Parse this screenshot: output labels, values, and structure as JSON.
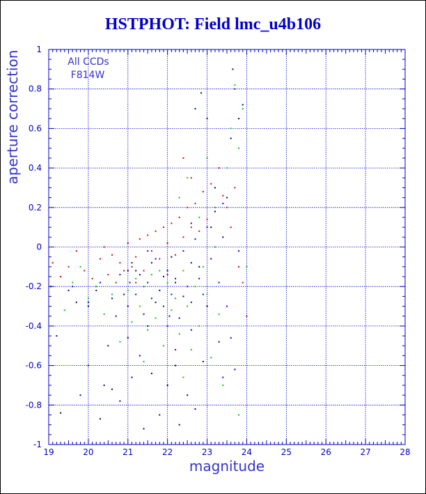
{
  "title": "HSTPHOT: Field lmc_u4b106",
  "colors": {
    "title": "#0000cc",
    "axis": "#0000cc",
    "grid": "#0000cc",
    "label": "#3333cc",
    "series": [
      "#000080",
      "#dd0000",
      "#00cc00",
      "#0000ff"
    ]
  },
  "chart_data": {
    "type": "scatter",
    "title": "HSTPHOT: Field lmc_u4b106",
    "xlabel": "magnitude",
    "ylabel": "aperture correction",
    "xlim": [
      19,
      28
    ],
    "ylim": [
      -1,
      1
    ],
    "xticks": [
      19,
      20,
      21,
      22,
      23,
      24,
      25,
      26,
      27,
      28
    ],
    "yticks": [
      -1,
      -0.8,
      -0.6,
      -0.4,
      -0.2,
      0,
      0.2,
      0.4,
      0.6,
      0.8,
      1
    ],
    "xtick_labels": [
      "19",
      "20",
      "21",
      "22",
      "23",
      "24",
      "25",
      "26",
      "27",
      "28"
    ],
    "ytick_labels": [
      "-1",
      "-0.8",
      "-0.6",
      "-0.4",
      "-0.2",
      "0",
      "0.2",
      "0.4",
      "0.6",
      "0.8",
      "1"
    ],
    "grid": true,
    "annotations": [
      "All CCDs",
      "F814W"
    ],
    "series": [
      {
        "color": "#000080",
        "points": [
          [
            19.05,
            -0.2
          ],
          [
            19.2,
            -0.45
          ],
          [
            19.3,
            -0.84
          ],
          [
            19.5,
            -0.22
          ],
          [
            19.7,
            -0.28
          ],
          [
            19.8,
            -0.75
          ],
          [
            20.0,
            -0.3
          ],
          [
            20.0,
            -0.6
          ],
          [
            20.2,
            -0.22
          ],
          [
            20.3,
            -0.87
          ],
          [
            20.4,
            -0.7
          ],
          [
            20.5,
            -0.5
          ],
          [
            20.6,
            -0.72
          ],
          [
            20.7,
            -0.35
          ],
          [
            20.8,
            -0.78
          ],
          [
            20.9,
            -0.24
          ],
          [
            21.0,
            -0.46
          ],
          [
            21.05,
            -0.18
          ],
          [
            21.1,
            -0.66
          ],
          [
            21.2,
            -0.12
          ],
          [
            21.3,
            -0.55
          ],
          [
            21.4,
            -0.92
          ],
          [
            21.5,
            -0.4
          ],
          [
            21.6,
            -0.64
          ],
          [
            21.7,
            -0.28
          ],
          [
            21.8,
            -0.85
          ],
          [
            21.9,
            -0.15
          ],
          [
            22.0,
            -0.7
          ],
          [
            22.05,
            -0.35
          ],
          [
            22.1,
            -0.05
          ],
          [
            22.2,
            -0.6
          ],
          [
            22.3,
            -0.9
          ],
          [
            22.4,
            -0.25
          ],
          [
            22.5,
            -0.75
          ],
          [
            22.6,
            -0.42
          ],
          [
            22.7,
            -0.82
          ],
          [
            22.8,
            -0.1
          ],
          [
            22.9,
            -0.58
          ],
          [
            23.0,
            -0.3
          ],
          [
            23.1,
            0.1
          ],
          [
            23.2,
            0.3
          ],
          [
            23.3,
            -0.48
          ],
          [
            23.4,
            0.05
          ],
          [
            23.5,
            0.25
          ],
          [
            23.6,
            0.55
          ],
          [
            23.65,
            0.9
          ],
          [
            23.7,
            0.8
          ],
          [
            23.8,
            0.65
          ],
          [
            23.9,
            0.72
          ],
          [
            22.85,
            0.78
          ],
          [
            22.7,
            0.7
          ],
          [
            23.0,
            0.65
          ],
          [
            21.6,
            -0.08
          ],
          [
            21.4,
            -0.2
          ],
          [
            22.2,
            -0.18
          ],
          [
            22.6,
            -0.08
          ]
        ]
      },
      {
        "color": "#dd0000",
        "points": [
          [
            19.1,
            -0.08
          ],
          [
            19.3,
            -0.15
          ],
          [
            19.5,
            -0.1
          ],
          [
            19.7,
            -0.02
          ],
          [
            19.9,
            -0.12
          ],
          [
            20.1,
            -0.16
          ],
          [
            20.3,
            -0.06
          ],
          [
            20.4,
            0.0
          ],
          [
            20.5,
            -0.14
          ],
          [
            20.6,
            -0.04
          ],
          [
            20.7,
            -0.18
          ],
          [
            20.8,
            -0.08
          ],
          [
            20.9,
            -0.12
          ],
          [
            21.0,
            0.02
          ],
          [
            21.1,
            -0.1
          ],
          [
            21.2,
            -0.05
          ],
          [
            21.3,
            0.04
          ],
          [
            21.4,
            -0.12
          ],
          [
            21.5,
            0.06
          ],
          [
            21.6,
            -0.02
          ],
          [
            21.7,
            0.08
          ],
          [
            21.8,
            -0.06
          ],
          [
            21.9,
            0.1
          ],
          [
            22.0,
            0.02
          ],
          [
            22.1,
            0.12
          ],
          [
            22.2,
            -0.04
          ],
          [
            22.3,
            0.15
          ],
          [
            22.4,
            0.05
          ],
          [
            22.5,
            0.2
          ],
          [
            22.6,
            0.1
          ],
          [
            22.7,
            0.22
          ],
          [
            22.8,
            0.08
          ],
          [
            22.9,
            0.28
          ],
          [
            23.0,
            0.14
          ],
          [
            23.1,
            0.32
          ],
          [
            23.2,
            0.18
          ],
          [
            23.3,
            0.4
          ],
          [
            23.4,
            0.26
          ],
          [
            23.5,
            0.2
          ],
          [
            23.6,
            0.1
          ],
          [
            23.7,
            0.3
          ],
          [
            23.8,
            -0.1
          ],
          [
            23.9,
            -0.18
          ],
          [
            24.0,
            -0.35
          ],
          [
            22.4,
            0.45
          ],
          [
            22.6,
            0.35
          ],
          [
            21.2,
            -0.18
          ],
          [
            22.0,
            -0.14
          ]
        ]
      },
      {
        "color": "#00cc00",
        "points": [
          [
            19.4,
            -0.32
          ],
          [
            19.6,
            -0.18
          ],
          [
            19.8,
            -0.1
          ],
          [
            20.0,
            -0.26
          ],
          [
            20.2,
            -0.2
          ],
          [
            20.4,
            -0.34
          ],
          [
            20.6,
            -0.24
          ],
          [
            20.8,
            -0.48
          ],
          [
            21.0,
            -0.22
          ],
          [
            21.1,
            -0.38
          ],
          [
            21.2,
            -0.16
          ],
          [
            21.3,
            -0.3
          ],
          [
            21.4,
            -0.2
          ],
          [
            21.5,
            -0.42
          ],
          [
            21.6,
            -0.14
          ],
          [
            21.7,
            -0.36
          ],
          [
            21.8,
            -0.22
          ],
          [
            21.9,
            -0.5
          ],
          [
            22.0,
            -0.18
          ],
          [
            22.1,
            -0.32
          ],
          [
            22.2,
            -0.26
          ],
          [
            22.3,
            -0.44
          ],
          [
            22.4,
            -0.12
          ],
          [
            22.5,
            -0.3
          ],
          [
            22.6,
            -0.52
          ],
          [
            22.7,
            -0.2
          ],
          [
            22.8,
            -0.4
          ],
          [
            22.9,
            -0.1
          ],
          [
            23.0,
            -0.24
          ],
          [
            23.1,
            -0.56
          ],
          [
            23.2,
            0.0
          ],
          [
            23.3,
            -0.34
          ],
          [
            23.4,
            -0.7
          ],
          [
            23.5,
            0.4
          ],
          [
            23.6,
            0.6
          ],
          [
            23.7,
            0.82
          ],
          [
            23.8,
            0.5
          ],
          [
            23.9,
            0.7
          ],
          [
            24.0,
            -0.1
          ],
          [
            23.8,
            -0.85
          ],
          [
            22.3,
            0.25
          ],
          [
            22.5,
            0.35
          ],
          [
            23.0,
            0.45
          ],
          [
            23.2,
            0.2
          ],
          [
            22.8,
            0.15
          ],
          [
            21.8,
            -0.12
          ],
          [
            22.4,
            -0.66
          ],
          [
            21.4,
            -0.58
          ]
        ]
      },
      {
        "color": "#0000ff",
        "points": [
          [
            19.6,
            -0.2
          ],
          [
            20.0,
            -0.28
          ],
          [
            20.3,
            -0.18
          ],
          [
            20.6,
            -0.26
          ],
          [
            20.8,
            -0.14
          ],
          [
            21.0,
            -0.3
          ],
          [
            21.1,
            -0.08
          ],
          [
            21.2,
            -0.24
          ],
          [
            21.3,
            -0.14
          ],
          [
            21.4,
            -0.34
          ],
          [
            21.5,
            -0.18
          ],
          [
            21.6,
            -0.26
          ],
          [
            21.7,
            -0.06
          ],
          [
            21.8,
            -0.22
          ],
          [
            21.9,
            -0.3
          ],
          [
            22.0,
            -0.12
          ],
          [
            22.1,
            -0.24
          ],
          [
            22.2,
            -0.16
          ],
          [
            22.3,
            -0.36
          ],
          [
            22.4,
            -0.02
          ],
          [
            22.5,
            -0.2
          ],
          [
            22.6,
            -0.28
          ],
          [
            22.7,
            0.04
          ],
          [
            22.8,
            -0.16
          ],
          [
            22.9,
            -0.24
          ],
          [
            23.0,
            0.1
          ],
          [
            23.1,
            -0.06
          ],
          [
            23.2,
            0.18
          ],
          [
            23.3,
            -0.18
          ],
          [
            23.4,
            0.22
          ],
          [
            23.5,
            -0.3
          ],
          [
            23.6,
            -0.46
          ],
          [
            23.7,
            -0.62
          ],
          [
            23.8,
            -0.02
          ],
          [
            21.5,
            -0.02
          ],
          [
            22.6,
            0.12
          ],
          [
            21.0,
            -0.12
          ],
          [
            22.0,
            -0.4
          ],
          [
            23.4,
            -0.66
          ],
          [
            22.2,
            -0.52
          ]
        ]
      }
    ]
  }
}
